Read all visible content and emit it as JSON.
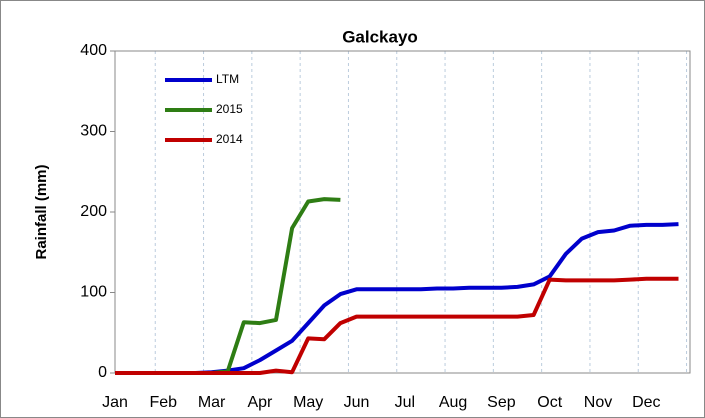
{
  "chart_data": {
    "type": "line",
    "title": "Galckayo",
    "y_label": "Rainfall (mm)",
    "categories": [
      "Jan",
      null,
      null,
      "Feb",
      null,
      null,
      "Mar",
      null,
      null,
      "Apr",
      null,
      null,
      "May",
      null,
      null,
      "Jun",
      null,
      null,
      "Jul",
      null,
      null,
      "Aug",
      null,
      null,
      "Sep",
      null,
      null,
      "Oct",
      null,
      null,
      "Nov",
      null,
      null,
      "Dec",
      null,
      null
    ],
    "series": [
      {
        "name": "LTM",
        "color": "#0000cc",
        "values": [
          0,
          0,
          0,
          0,
          0,
          0,
          1,
          3,
          6,
          16,
          28,
          40,
          62,
          84,
          98,
          104,
          104,
          104,
          104,
          104,
          105,
          105,
          106,
          106,
          106,
          107,
          110,
          120,
          148,
          167,
          175,
          177,
          183,
          184,
          184,
          185
        ]
      },
      {
        "name": "2015",
        "color": "#2e7d14",
        "values": [
          0,
          0,
          0,
          0,
          0,
          0,
          0,
          2,
          63,
          62,
          66,
          180,
          213,
          216,
          215,
          null,
          null,
          null,
          null,
          null,
          null,
          null,
          null,
          null,
          null,
          null,
          null,
          null,
          null,
          null,
          null,
          null,
          null,
          null,
          null,
          null
        ]
      },
      {
        "name": "2014",
        "color": "#c00000",
        "values": [
          0,
          0,
          0,
          0,
          0,
          0,
          0,
          0,
          0,
          0,
          3,
          1,
          43,
          42,
          62,
          70,
          70,
          70,
          70,
          70,
          70,
          70,
          70,
          70,
          70,
          70,
          72,
          116,
          115,
          115,
          115,
          115,
          116,
          117,
          117,
          117
        ]
      }
    ],
    "ylim": [
      0,
      400
    ],
    "yticks": [
      0,
      100,
      200,
      300,
      400
    ],
    "legend": "upper left"
  }
}
